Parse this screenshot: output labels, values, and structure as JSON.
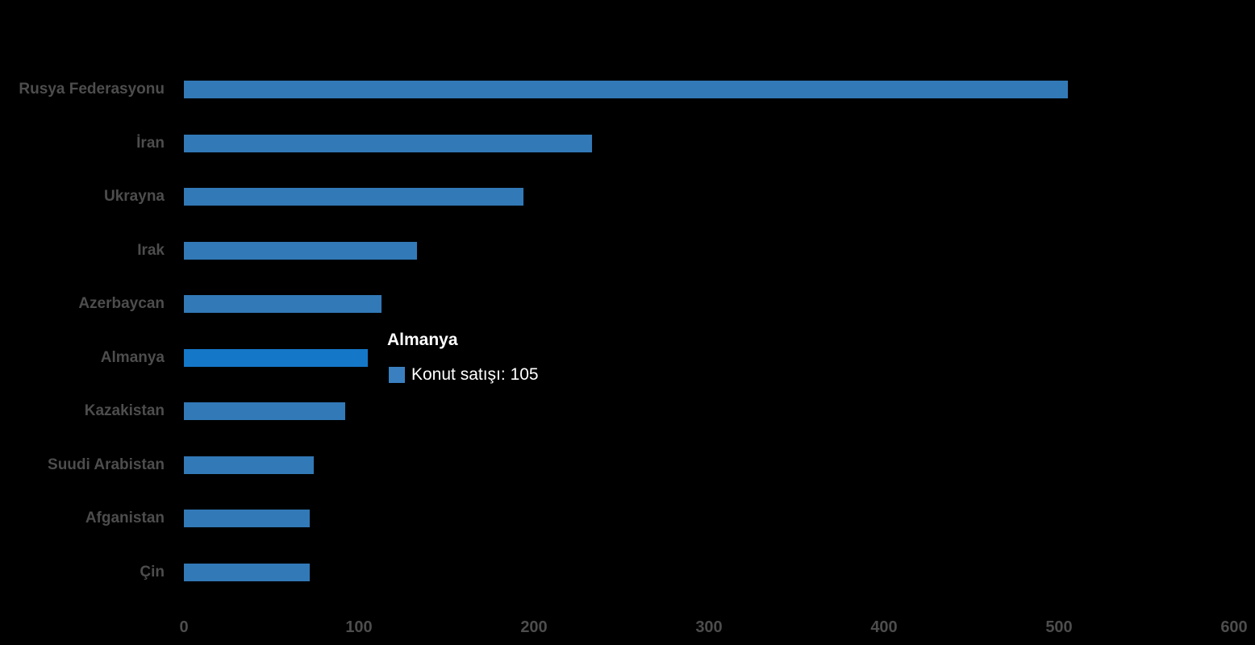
{
  "chart_data": {
    "type": "bar",
    "orientation": "horizontal",
    "title": "",
    "xlabel": "",
    "ylabel": "",
    "categories": [
      "Rusya Federasyonu",
      "İran",
      "Ukrayna",
      "Irak",
      "Azerbaycan",
      "Almanya",
      "Kazakistan",
      "Suudi Arabistan",
      "Afganistan",
      "Çin"
    ],
    "values": [
      505,
      233,
      194,
      133,
      113,
      105,
      92,
      74,
      72,
      72
    ],
    "series_name": "Konut satışı",
    "xlim": [
      0,
      600
    ],
    "x_ticks": [
      0,
      100,
      200,
      300,
      400,
      500,
      600
    ],
    "grid": false,
    "legend": "none",
    "highlighted_category": "Almanya",
    "colors": {
      "bar": "#3279B7",
      "bar_highlight": "#1577C8",
      "axis_label": "#4D4D4D",
      "background": "#000000"
    }
  },
  "tooltip": {
    "title": "Almanya",
    "series_label": "Konut satışı",
    "value": "105",
    "text": "Konut satışı: 105",
    "swatch_color": "#3A80C0",
    "text_color": "#FFFFFF"
  }
}
